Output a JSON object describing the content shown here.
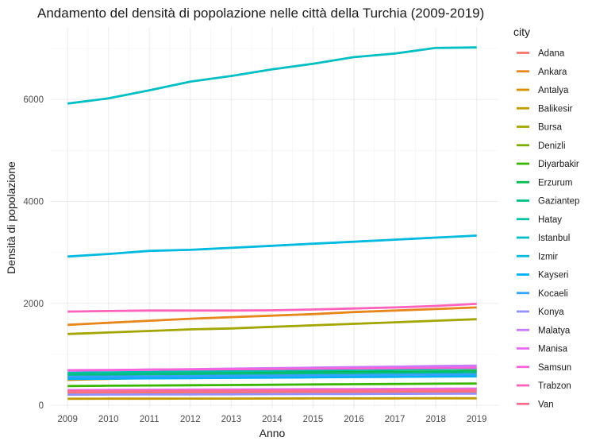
{
  "chart_data": {
    "type": "line",
    "title": "Andamento del densità di popolazione nelle città della Turchia (2009-2019)",
    "xlabel": "Anno",
    "ylabel": "Densità di popolazione",
    "x": [
      2009,
      2010,
      2011,
      2012,
      2013,
      2014,
      2015,
      2016,
      2017,
      2018,
      2019
    ],
    "xlim": [
      2008.57,
      2019.53
    ],
    "ylim": [
      -60,
      7420
    ],
    "yticks": [
      0,
      2000,
      4000,
      6000
    ],
    "ytick_labels": [
      "0",
      "2000",
      "4000",
      "6000"
    ],
    "xtick_labels": [
      "2009",
      "2010",
      "2011",
      "2012",
      "2013",
      "2014",
      "2015",
      "2016",
      "2017",
      "2018",
      "2019"
    ],
    "grid": true,
    "legend_title": "city",
    "legend_position": "right",
    "series": [
      {
        "name": "Adana",
        "color": "#F8766D",
        "values": [
          250,
          252,
          254,
          256,
          258,
          260,
          262,
          264,
          266,
          268,
          270
        ]
      },
      {
        "name": "Ankara",
        "color": "#E7861B",
        "values": [
          1580,
          1620,
          1660,
          1700,
          1730,
          1760,
          1790,
          1830,
          1860,
          1890,
          1920
        ]
      },
      {
        "name": "Antalya",
        "color": "#D89000",
        "values": [
          500,
          520,
          540,
          560,
          580,
          600,
          615,
          630,
          645,
          660,
          675
        ]
      },
      {
        "name": "Balikesir",
        "color": "#C09B00",
        "values": [
          130,
          131,
          132,
          133,
          134,
          135,
          136,
          137,
          138,
          139,
          140
        ]
      },
      {
        "name": "Bursa",
        "color": "#A3A500",
        "values": [
          1400,
          1430,
          1460,
          1490,
          1510,
          1540,
          1570,
          1600,
          1630,
          1660,
          1690
        ]
      },
      {
        "name": "Denizli",
        "color": "#7CAE00",
        "values": [
          560,
          565,
          570,
          575,
          580,
          585,
          590,
          595,
          600,
          605,
          610
        ]
      },
      {
        "name": "Diyarbakir",
        "color": "#39B600",
        "values": [
          380,
          385,
          390,
          395,
          400,
          405,
          410,
          415,
          420,
          425,
          430
        ]
      },
      {
        "name": "Erzurum",
        "color": "#00BB4E",
        "values": [
          620,
          625,
          630,
          635,
          640,
          645,
          650,
          655,
          660,
          665,
          670
        ]
      },
      {
        "name": "Gaziantep",
        "color": "#00BF7D",
        "values": [
          600,
          605,
          610,
          615,
          620,
          625,
          630,
          635,
          640,
          645,
          650
        ]
      },
      {
        "name": "Hatay",
        "color": "#00C1A3",
        "values": [
          640,
          648,
          656,
          664,
          672,
          680,
          688,
          696,
          704,
          712,
          720
        ]
      },
      {
        "name": "Istanbul",
        "color": "#00BFC4",
        "values": [
          5920,
          6020,
          6180,
          6350,
          6460,
          6590,
          6700,
          6830,
          6900,
          7010,
          7020
        ]
      },
      {
        "name": "Izmir",
        "color": "#00BAE0",
        "values": [
          2920,
          2970,
          3030,
          3050,
          3090,
          3130,
          3170,
          3210,
          3250,
          3290,
          3330
        ]
      },
      {
        "name": "Kayseri",
        "color": "#00B0F6",
        "values": [
          520,
          525,
          530,
          535,
          540,
          545,
          550,
          555,
          560,
          565,
          570
        ]
      },
      {
        "name": "Kocaeli",
        "color": "#35A2FF",
        "values": [
          560,
          565,
          570,
          575,
          580,
          585,
          590,
          595,
          600,
          605,
          610
        ]
      },
      {
        "name": "Konya",
        "color": "#9590FF",
        "values": [
          210,
          212,
          214,
          216,
          218,
          220,
          222,
          224,
          226,
          228,
          230
        ]
      },
      {
        "name": "Malatya",
        "color": "#C77CFF",
        "values": [
          680,
          690,
          700,
          710,
          720,
          730,
          740,
          750,
          760,
          770,
          780
        ]
      },
      {
        "name": "Manisa",
        "color": "#E76BF3",
        "values": [
          300,
          303,
          306,
          309,
          312,
          315,
          318,
          321,
          324,
          327,
          330
        ]
      },
      {
        "name": "Samsun",
        "color": "#FA62DB",
        "values": [
          690,
          695,
          700,
          705,
          710,
          715,
          720,
          725,
          730,
          735,
          740
        ]
      },
      {
        "name": "Trabzon",
        "color": "#FF62BC",
        "values": [
          1840,
          1850,
          1860,
          1860,
          1860,
          1865,
          1880,
          1900,
          1920,
          1950,
          1990
        ]
      },
      {
        "name": "Van",
        "color": "#FF6C91",
        "values": [
          280,
          282,
          284,
          286,
          288,
          290,
          292,
          294,
          296,
          298,
          300
        ]
      }
    ]
  }
}
